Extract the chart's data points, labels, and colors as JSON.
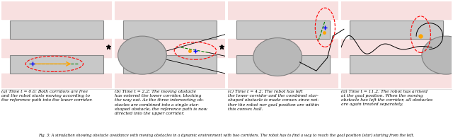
{
  "fig_width": 6.4,
  "fig_height": 1.98,
  "background_color": "#ffffff",
  "panel_bg": "#f8e0e0",
  "captions": [
    "(a) Time t = 0.0: Both corridors are free\nand the robot starts moving according to\nthe reference path into the lower corridor.",
    "(b) Time t = 2.2: The moving obstacle\nhas entered the lower corridor, blocking\nthe way out. As the three intersecting ob-\nstacles are combined into a single star-\nshaped obstacle, the reference path is now\ndirected into the upper corridor.",
    "(c) Time t = 4.2: The robot has left\nthe lower corridor and the combined star-\nshaped obstacle is made convex since nei-\nther the robot nor goal position are within\nthis convex hull.",
    "(d) Time t = 11.2: The robot has arrived\nat the goal position. When the moving\nobstacle has left the corridor, all obstacles\nare again treated separately."
  ],
  "footer": "Fig. 3: A simulation showing obstacle avoidance with moving obstacles in a dynamic environment with two corridors. The robot has to find a way to reach the goal position (star) starting from the left."
}
